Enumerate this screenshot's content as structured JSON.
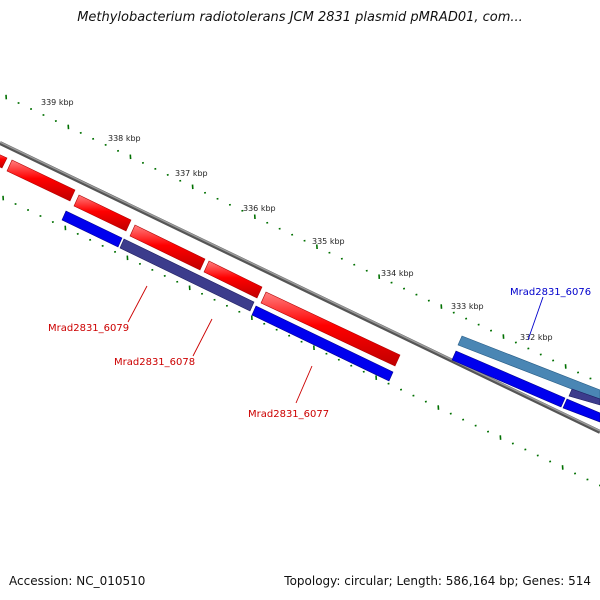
{
  "header": {
    "title": "Methylobacterium radiotolerans JCM 2831 plasmid pMRAD01, com..."
  },
  "footer": {
    "accession": "Accession: NC_010510",
    "summary": "Topology: circular; Length: 586,164 bp; Genes: 514"
  },
  "scale": {
    "labels": [
      "339 kbp",
      "338 kbp",
      "337 kbp",
      "336 kbp",
      "335 kbp",
      "334 kbp",
      "333 kbp",
      "332 kbp"
    ]
  },
  "genes": {
    "labels": [
      "Mrad2831_6079",
      "Mrad2831_6078",
      "Mrad2831_6077",
      "Mrad2831_6076"
    ]
  },
  "colors": {
    "forward": "#ff0000",
    "reverse": "#0000ff",
    "reverse_dark": "#3c3c8c",
    "reverse_light": "#4a86b4",
    "backbone": "#808080",
    "ticks": "#007000",
    "forward_label": "#cc0000",
    "reverse_label": "#0000cc"
  }
}
